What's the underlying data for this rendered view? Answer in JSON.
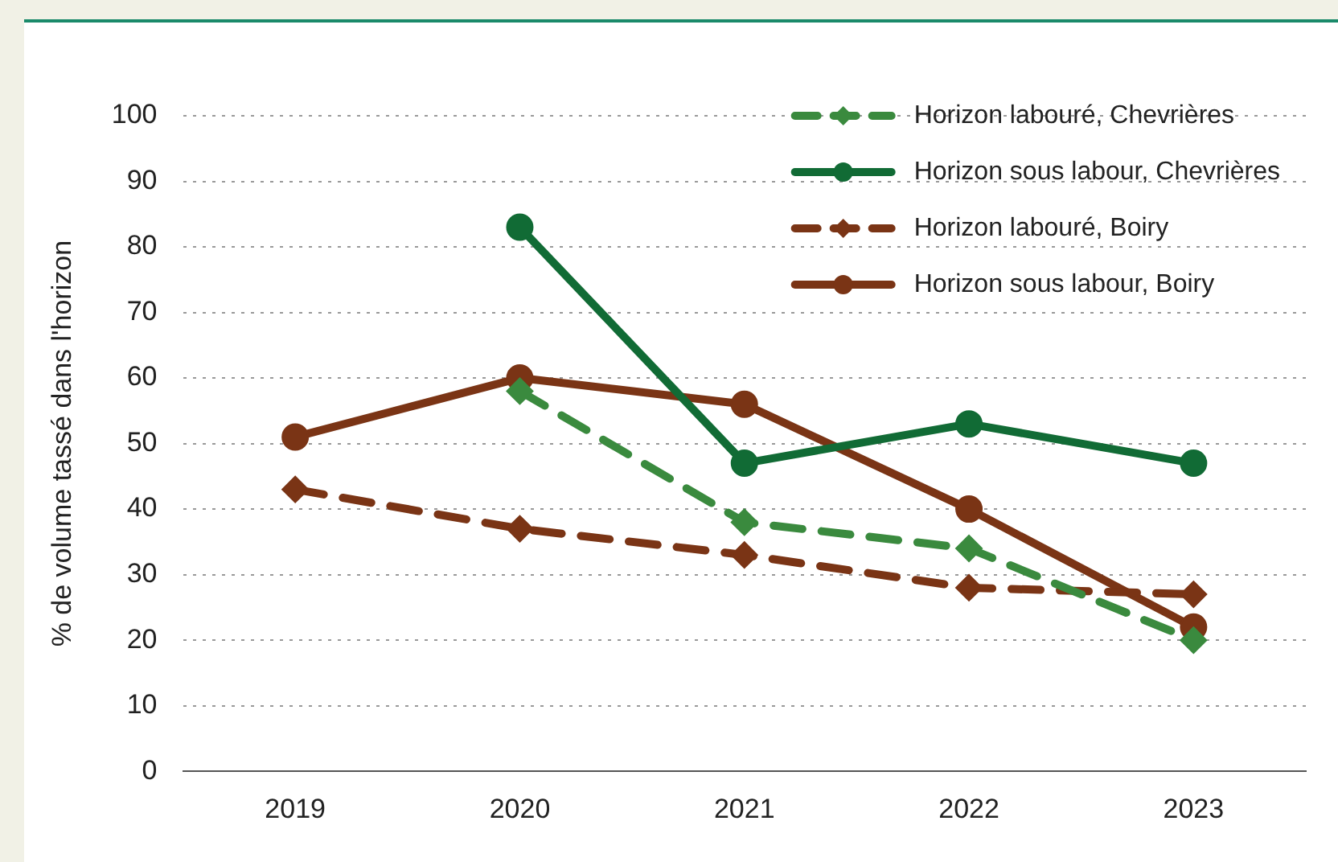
{
  "chart_data": {
    "type": "line",
    "ylabel": "% de volume tassé dans l'horizon",
    "categories": [
      "2019",
      "2020",
      "2021",
      "2022",
      "2023"
    ],
    "series": [
      {
        "name": "Horizon labouré, Chevrières",
        "color": "#3a8a3e",
        "values": [
          null,
          58,
          38,
          34,
          20
        ],
        "marker": "diamond",
        "line_style": "dashed"
      },
      {
        "name": "Horizon sous labour, Chevrières",
        "color": "#116b35",
        "values": [
          null,
          83,
          47,
          53,
          47
        ],
        "marker": "circle",
        "line_style": "solid"
      },
      {
        "name": "Horizon labouré, Boiry",
        "color": "#7a3415",
        "values": [
          43,
          37,
          33,
          28,
          27
        ],
        "marker": "diamond",
        "line_style": "dashed"
      },
      {
        "name": "Horizon sous labour, Boiry",
        "color": "#7a3415",
        "values": [
          51,
          60,
          56,
          40,
          22
        ],
        "marker": "circle",
        "line_style": "solid"
      }
    ],
    "ylim": [
      0,
      100
    ],
    "yticks": [
      0,
      10,
      20,
      30,
      40,
      50,
      60,
      70,
      80,
      90,
      100
    ],
    "grid": "y",
    "legend": "top right"
  }
}
